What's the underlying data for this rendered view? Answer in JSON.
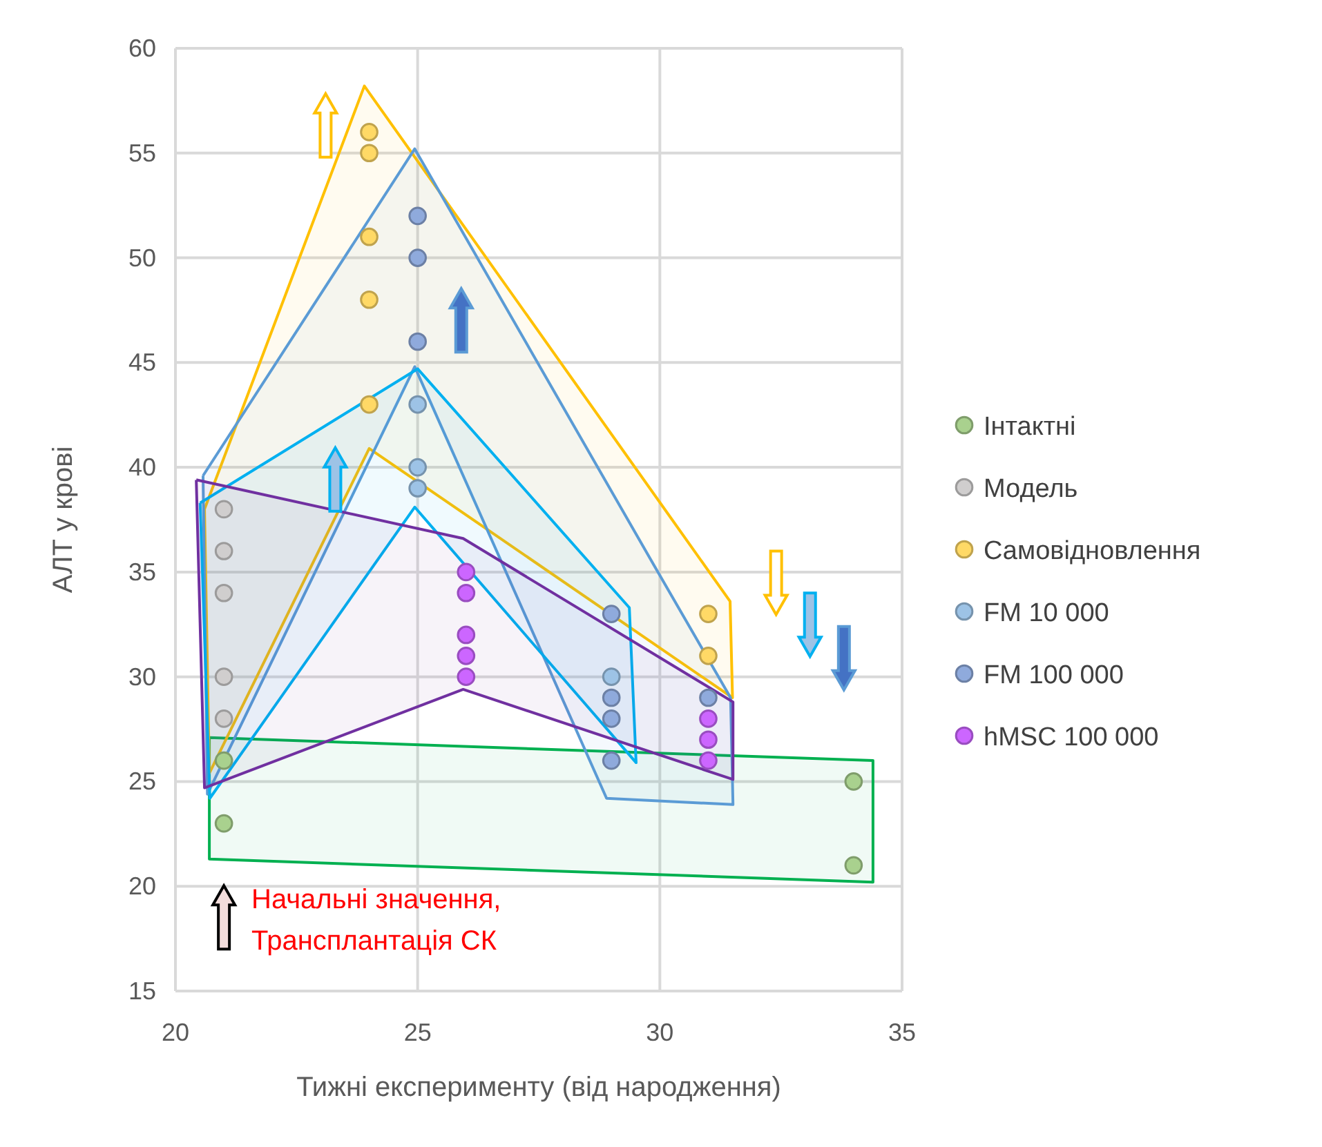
{
  "chart_data": {
    "type": "scatter",
    "xlabel": "Тижні експерименту (від народження)",
    "ylabel": "АЛТ у крові",
    "xlim": [
      20,
      35
    ],
    "xticks": [
      20,
      25,
      30,
      35
    ],
    "ylim": [
      15,
      60
    ],
    "yticks": [
      15,
      20,
      25,
      30,
      35,
      40,
      45,
      50,
      55,
      60
    ],
    "grid": true,
    "legend": "right",
    "annotations": [
      "Начальні значення,\nТрансплантація СК"
    ],
    "series": [
      {
        "type": "area",
        "color": "#00b050",
        "x": [
          20.7,
          34.4,
          34.4,
          20.7,
          20.7
        ],
        "values": [
          27.1,
          26.0,
          20.2,
          21.3,
          27.1
        ]
      },
      {
        "type": "area",
        "color": "#ffc000",
        "x": [
          20.6,
          23.9,
          31.45,
          31.5,
          24,
          20.7,
          20.6
        ],
        "values": [
          38,
          58.2,
          33.6,
          29,
          40.9,
          25.4,
          38
        ]
      },
      {
        "type": "area",
        "color": "#5b9bd5",
        "x": [
          20.57,
          24.94,
          29.86,
          31.46,
          31.51,
          28.9,
          24.94,
          20.66,
          20.57
        ],
        "values": [
          39.6,
          55.2,
          35.4,
          29,
          23.9,
          24.2,
          44.8,
          24.4,
          39.6
        ]
      },
      {
        "type": "area",
        "color": "#00b0f0",
        "x": [
          20.51,
          25,
          29.37,
          29.51,
          24.94,
          20.71,
          20.51
        ],
        "values": [
          38.3,
          44.7,
          33.3,
          25.9,
          38.1,
          24.2,
          38.3
        ]
      },
      {
        "type": "area",
        "color": "#7030a0",
        "x": [
          20.43,
          25.94,
          31.51,
          31.51,
          25.94,
          20.6,
          20.43
        ],
        "values": [
          39.4,
          36.6,
          28.8,
          25.1,
          29.4,
          24.7,
          39.4
        ]
      },
      {
        "name": "Інтактні",
        "marker": "circle",
        "color": "#a9d18e",
        "x": [
          21,
          21,
          34,
          34
        ],
        "values": [
          26,
          23,
          25,
          21
        ]
      },
      {
        "name": "Модель",
        "marker": "circle",
        "color": "#d0cece",
        "x": [
          21,
          21,
          21,
          21,
          21
        ],
        "values": [
          38,
          36,
          34,
          30,
          28
        ]
      },
      {
        "name": "Самовідновлення",
        "marker": "circle",
        "color": "#ffd966",
        "x": [
          24,
          24,
          24,
          24,
          24,
          31,
          31
        ],
        "values": [
          56,
          55,
          51,
          48,
          43,
          33,
          31
        ]
      },
      {
        "name": "FM 10 000",
        "marker": "circle",
        "color": "#9dc3e6",
        "x": [
          25,
          25,
          25,
          29
        ],
        "values": [
          43,
          40,
          39,
          30
        ]
      },
      {
        "name": "FM 100 000",
        "marker": "circle",
        "color": "#8faadc",
        "x": [
          25,
          25,
          25,
          29,
          29,
          29,
          29,
          31
        ],
        "values": [
          52,
          50,
          46,
          33,
          29,
          28,
          26,
          29
        ]
      },
      {
        "name": "hMSC 100 000",
        "marker": "circle",
        "color": "#cc66ff",
        "x": [
          26,
          26,
          26,
          26,
          26,
          31,
          31,
          31
        ],
        "values": [
          35,
          34,
          32,
          31,
          30,
          28,
          27,
          26
        ]
      }
    ]
  }
}
